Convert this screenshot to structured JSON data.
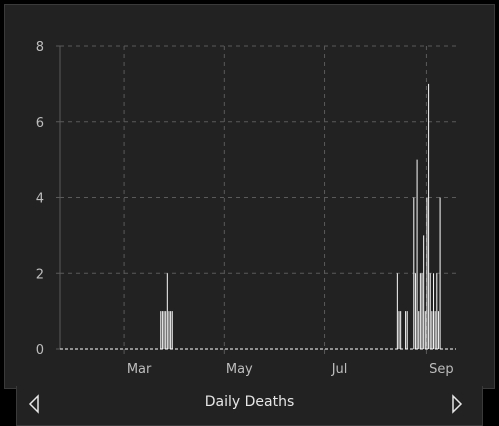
{
  "footer": {
    "title": "Daily Deaths"
  },
  "colors": {
    "background": "#222222",
    "bar": "#f2f2f2",
    "grid": "#5a5a5a",
    "text": "#bdbdbd"
  },
  "icons": {
    "prev": "chevron-left-icon",
    "next": "chevron-right-icon"
  },
  "chart_data": {
    "type": "bar",
    "title": "Daily Deaths",
    "xlabel": "",
    "ylabel": "",
    "ylim": [
      0,
      8
    ],
    "yticks": [
      0,
      2,
      4,
      6,
      8
    ],
    "xlim": [
      "2020-01-22",
      "2020-09-19"
    ],
    "xticks": [
      {
        "date": "2020-03-01",
        "label": "Mar"
      },
      {
        "date": "2020-05-01",
        "label": "May"
      },
      {
        "date": "2020-07-01",
        "label": "Jul"
      },
      {
        "date": "2020-09-01",
        "label": "Sep"
      }
    ],
    "grid": true,
    "series": [
      {
        "values": [
          {
            "date": "2020-03-23",
            "value": 1
          },
          {
            "date": "2020-03-24",
            "value": 1
          },
          {
            "date": "2020-03-25",
            "value": 1
          },
          {
            "date": "2020-03-26",
            "value": 1
          },
          {
            "date": "2020-03-27",
            "value": 2
          },
          {
            "date": "2020-03-28",
            "value": 1
          },
          {
            "date": "2020-03-29",
            "value": 1
          },
          {
            "date": "2020-03-30",
            "value": 1
          },
          {
            "date": "2020-08-14",
            "value": 2
          },
          {
            "date": "2020-08-15",
            "value": 1
          },
          {
            "date": "2020-08-16",
            "value": 1
          },
          {
            "date": "2020-08-19",
            "value": 1
          },
          {
            "date": "2020-08-20",
            "value": 1
          },
          {
            "date": "2020-08-24",
            "value": 4
          },
          {
            "date": "2020-08-25",
            "value": 2
          },
          {
            "date": "2020-08-26",
            "value": 5
          },
          {
            "date": "2020-08-27",
            "value": 1
          },
          {
            "date": "2020-08-28",
            "value": 2
          },
          {
            "date": "2020-08-29",
            "value": 2
          },
          {
            "date": "2020-08-30",
            "value": 3
          },
          {
            "date": "2020-08-31",
            "value": 1
          },
          {
            "date": "2020-09-01",
            "value": 4
          },
          {
            "date": "2020-09-02",
            "value": 7
          },
          {
            "date": "2020-09-03",
            "value": 2
          },
          {
            "date": "2020-09-04",
            "value": 1
          },
          {
            "date": "2020-09-05",
            "value": 2
          },
          {
            "date": "2020-09-06",
            "value": 1
          },
          {
            "date": "2020-09-07",
            "value": 2
          },
          {
            "date": "2020-09-08",
            "value": 1
          },
          {
            "date": "2020-09-09",
            "value": 4
          }
        ]
      }
    ]
  }
}
